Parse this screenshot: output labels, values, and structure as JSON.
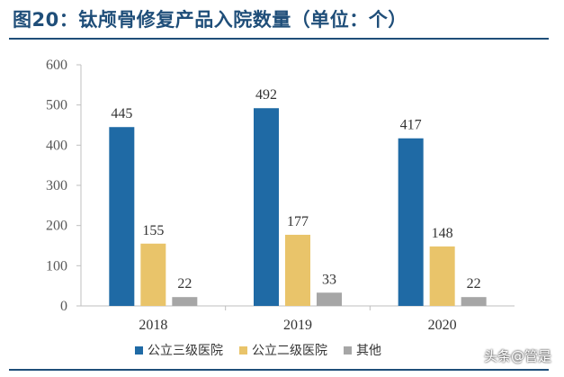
{
  "title": "图20：钛颅骨修复产品入院数量（单位：个）",
  "watermark": "头条@管是",
  "chart_data": {
    "type": "bar",
    "categories": [
      "2018",
      "2019",
      "2020"
    ],
    "series": [
      {
        "name": "公立三级医院",
        "color": "#1f6aa5",
        "values": [
          445,
          492,
          417
        ]
      },
      {
        "name": "公立二级医院",
        "color": "#e9c46a",
        "values": [
          155,
          177,
          148
        ]
      },
      {
        "name": "其他",
        "color": "#a6a6a6",
        "values": [
          22,
          33,
          22
        ]
      }
    ],
    "ylim": [
      0,
      600
    ],
    "yticks": [
      0,
      100,
      200,
      300,
      400,
      500,
      600
    ],
    "legend_position": "bottom",
    "grid": false
  }
}
